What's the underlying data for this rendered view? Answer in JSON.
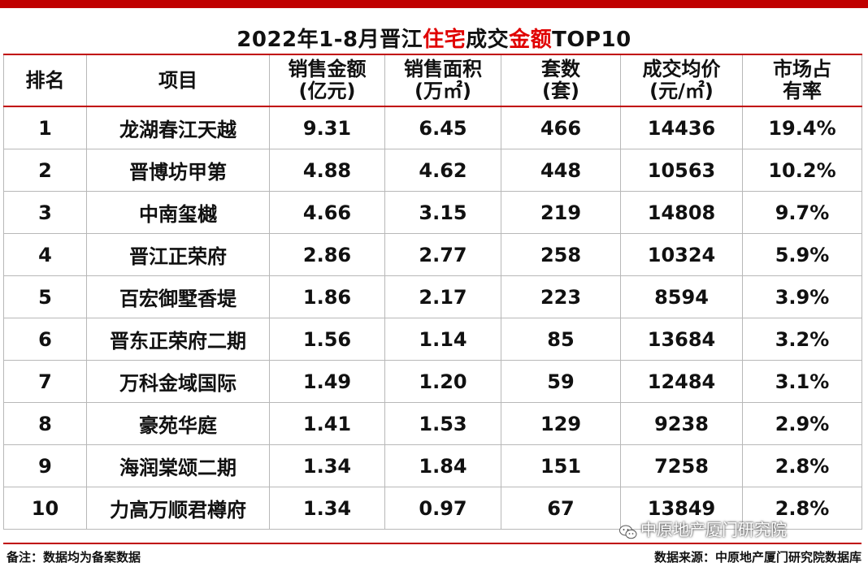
{
  "title": {
    "part1": "2022年1-8月晋江",
    "part2": "住宅",
    "part3": "成交",
    "part4": "金额",
    "part5": "TOP10"
  },
  "headers": {
    "rank": "排名",
    "project": "项目",
    "sales_amount_1": "销售金额",
    "sales_amount_2": "(亿元)",
    "sales_area_1": "销售面积",
    "sales_area_2": "(万㎡)",
    "units_1": "套数",
    "units_2": "(套)",
    "avg_price_1": "成交均价",
    "avg_price_2": "(元/㎡)",
    "share_1": "市场占",
    "share_2": "有率"
  },
  "rows": [
    {
      "rank": "1",
      "project": "龙湖春江天越",
      "amount": "9.31",
      "area": "6.45",
      "units": "466",
      "price": "14436",
      "share": "19.4%"
    },
    {
      "rank": "2",
      "project": "晋博坊甲第",
      "amount": "4.88",
      "area": "4.62",
      "units": "448",
      "price": "10563",
      "share": "10.2%"
    },
    {
      "rank": "3",
      "project": "中南玺樾",
      "amount": "4.66",
      "area": "3.15",
      "units": "219",
      "price": "14808",
      "share": "9.7%"
    },
    {
      "rank": "4",
      "project": "晋江正荣府",
      "amount": "2.86",
      "area": "2.77",
      "units": "258",
      "price": "10324",
      "share": "5.9%"
    },
    {
      "rank": "5",
      "project": "百宏御墅香堤",
      "amount": "1.86",
      "area": "2.17",
      "units": "223",
      "price": "8594",
      "share": "3.9%"
    },
    {
      "rank": "6",
      "project": "晋东正荣府二期",
      "amount": "1.56",
      "area": "1.14",
      "units": "85",
      "price": "13684",
      "share": "3.2%"
    },
    {
      "rank": "7",
      "project": "万科金域国际",
      "amount": "1.49",
      "area": "1.20",
      "units": "59",
      "price": "12484",
      "share": "3.1%"
    },
    {
      "rank": "8",
      "project": "豪苑华庭",
      "amount": "1.41",
      "area": "1.53",
      "units": "129",
      "price": "9238",
      "share": "2.9%"
    },
    {
      "rank": "9",
      "project": "海润棠颂二期",
      "amount": "1.34",
      "area": "1.84",
      "units": "151",
      "price": "7258",
      "share": "2.8%"
    },
    {
      "rank": "10",
      "project": "力高万顺君樽府",
      "amount": "1.34",
      "area": "0.97",
      "units": "67",
      "price": "13849",
      "share": "2.8%"
    }
  ],
  "footer": {
    "note": "备注：数据均为备案数据",
    "source": "数据来源：中原地产厦门研究院数据库"
  },
  "watermark": {
    "wechat_text": "中原地产厦门研究院",
    "icon": "wechat-icon"
  },
  "colors": {
    "accent_red": "#e00000",
    "rule_red": "#c00000"
  }
}
